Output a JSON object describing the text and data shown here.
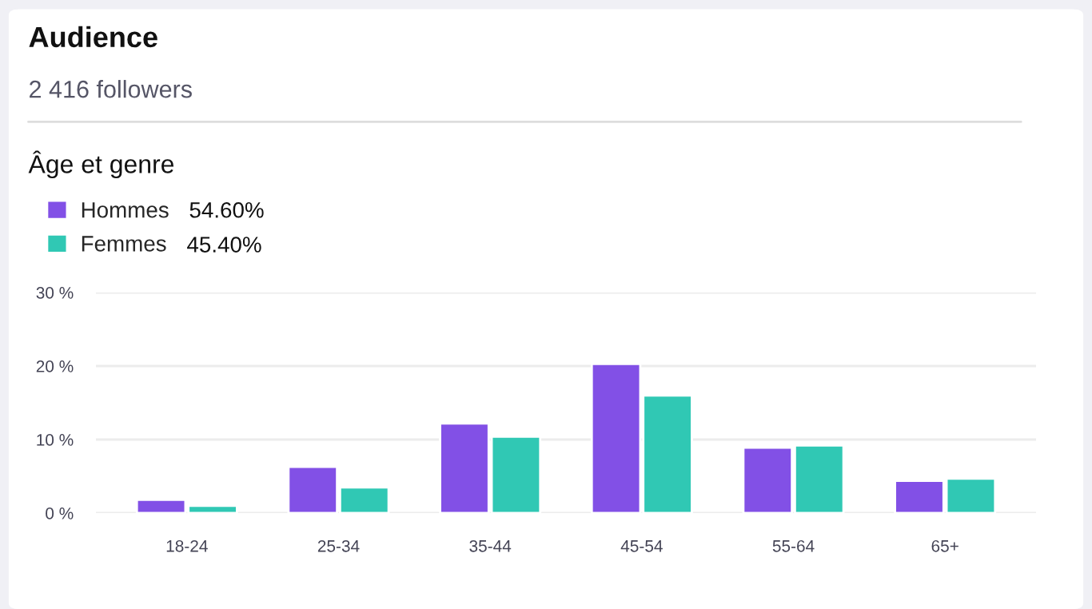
{
  "chart_data": {
    "type": "bar",
    "title": "Audience",
    "subtitle": "2 416 followers",
    "annotations": [
      "Âge et genre",
      "54.60%",
      "45.40%"
    ],
    "categories": [
      "18-24",
      "25-34",
      "35-44",
      "45-54",
      "55-64",
      "65+"
    ],
    "series": [
      {
        "name": "Hommes",
        "color": "#8250e6",
        "values": [
          1.8,
          6.3,
          12.2,
          20.3,
          8.9,
          4.4
        ]
      },
      {
        "name": "Femmes",
        "color": "#30c8b4",
        "values": [
          1.0,
          3.5,
          10.4,
          16.0,
          9.2,
          4.7
        ]
      }
    ],
    "ylim": [
      0,
      30
    ],
    "yticks": [
      {
        "value": 0,
        "label": "0 %"
      },
      {
        "value": 10,
        "label": "10 %"
      },
      {
        "value": 20,
        "label": "20 %"
      },
      {
        "value": 30,
        "label": "30 %"
      }
    ],
    "grid": "y",
    "legend": "top left"
  }
}
